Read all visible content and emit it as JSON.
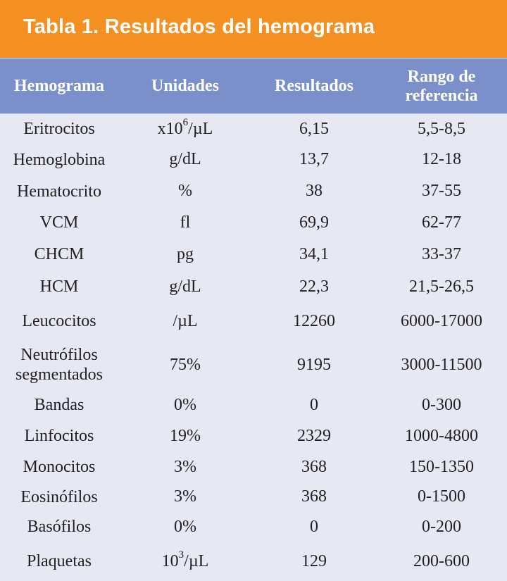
{
  "title": "Tabla 1. Resultados del hemograma",
  "header": {
    "col1": "Hemograma",
    "col2": "Unidades",
    "col3": "Resultados",
    "col4_line1": "Rango de",
    "col4_line2": "referencia"
  },
  "colors": {
    "title_bg": "#f39021",
    "header_bg": "#7b8fca",
    "body_bg": "#e6e8f3"
  },
  "rows": [
    {
      "name": "Eritrocitos",
      "unit_pre": "x10",
      "unit_sup": "6",
      "unit_post": "/µL",
      "result": "6,15",
      "range": "5,5-8,5"
    },
    {
      "name": "Hemoglobina",
      "unit_pre": "g/dL",
      "unit_sup": "",
      "unit_post": "",
      "result": "13,7",
      "range": "12-18"
    },
    {
      "name": "Hematocrito",
      "unit_pre": "%",
      "unit_sup": "",
      "unit_post": "",
      "result": "38",
      "range": "37-55"
    },
    {
      "name": "VCM",
      "unit_pre": "fl",
      "unit_sup": "",
      "unit_post": "",
      "result": "69,9",
      "range": "62-77"
    },
    {
      "name": "CHCM",
      "unit_pre": "pg",
      "unit_sup": "",
      "unit_post": "",
      "result": "34,1",
      "range": "33-37"
    },
    {
      "name": "HCM",
      "unit_pre": "g/dL",
      "unit_sup": "",
      "unit_post": "",
      "result": "22,3",
      "range": "21,5-26,5"
    },
    {
      "name": "Leucocitos",
      "unit_pre": "/µL",
      "unit_sup": "",
      "unit_post": "",
      "result": "12260",
      "range": "6000-17000"
    },
    {
      "name": "Neutrófilos segmentados",
      "name_line1": "Neutrófilos",
      "name_line2": "segmentados",
      "unit_pre": "75%",
      "unit_sup": "",
      "unit_post": "",
      "result": "9195",
      "range": "3000-11500"
    },
    {
      "name": "Bandas",
      "unit_pre": "0%",
      "unit_sup": "",
      "unit_post": "",
      "result": "0",
      "range": "0-300"
    },
    {
      "name": "Linfocitos",
      "unit_pre": "19%",
      "unit_sup": "",
      "unit_post": "",
      "result": "2329",
      "range": "1000-4800"
    },
    {
      "name": "Monocitos",
      "unit_pre": "3%",
      "unit_sup": "",
      "unit_post": "",
      "result": "368",
      "range": "150-1350"
    },
    {
      "name": "Eosinófilos",
      "unit_pre": "3%",
      "unit_sup": "",
      "unit_post": "",
      "result": "368",
      "range": "0-1500"
    },
    {
      "name": "Basófilos",
      "unit_pre": "0%",
      "unit_sup": "",
      "unit_post": "",
      "result": "0",
      "range": "0-200"
    },
    {
      "name": "Plaquetas",
      "unit_pre": "10",
      "unit_sup": "3",
      "unit_post": "/µL",
      "result": "129",
      "range": "200-600"
    }
  ]
}
